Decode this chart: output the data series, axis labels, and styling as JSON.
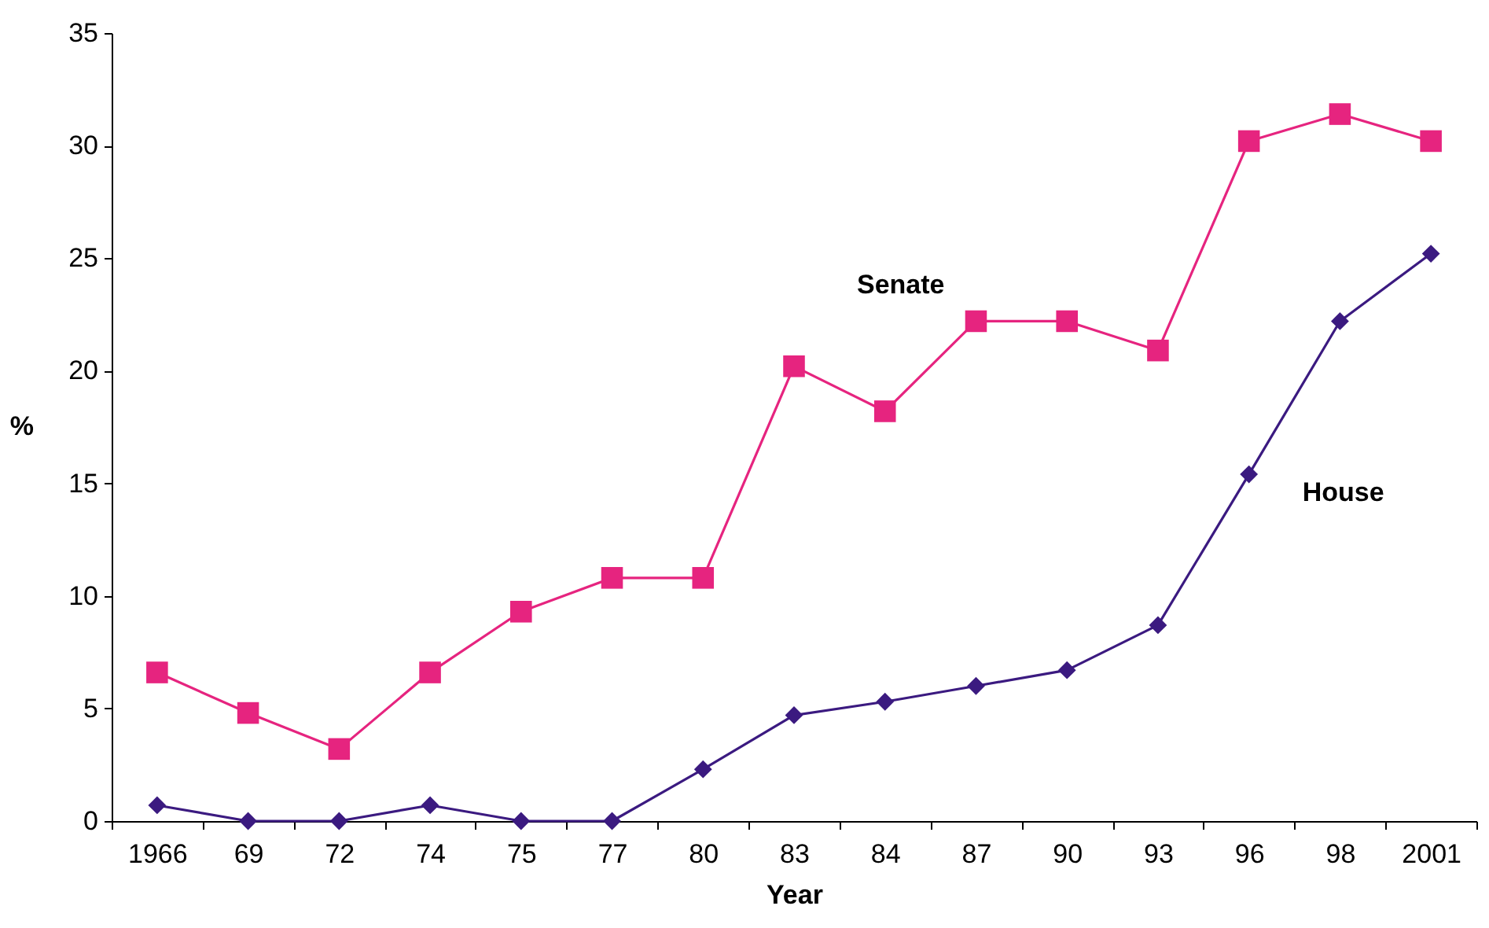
{
  "chart_data": {
    "type": "line",
    "xlabel": "Year",
    "ylabel": "%",
    "categories": [
      "1966",
      "69",
      "72",
      "74",
      "75",
      "77",
      "80",
      "83",
      "84",
      "87",
      "90",
      "93",
      "96",
      "98",
      "2001"
    ],
    "series": [
      {
        "name": "Senate",
        "color": "#e6247f",
        "marker": "square",
        "values": [
          6.6,
          4.8,
          3.2,
          6.6,
          9.3,
          10.8,
          10.8,
          20.2,
          18.2,
          22.2,
          22.2,
          20.9,
          30.2,
          31.4,
          30.2
        ]
      },
      {
        "name": "House",
        "color": "#3b1a80",
        "marker": "diamond",
        "values": [
          0.7,
          0,
          0,
          0.7,
          0,
          0,
          2.3,
          4.7,
          5.3,
          6.0,
          6.7,
          8.7,
          15.4,
          22.2,
          25.2
        ]
      }
    ],
    "ylim": [
      0,
      35
    ],
    "yticks": [
      0,
      5,
      10,
      15,
      20,
      25,
      30,
      35
    ],
    "line_style": "solid"
  }
}
